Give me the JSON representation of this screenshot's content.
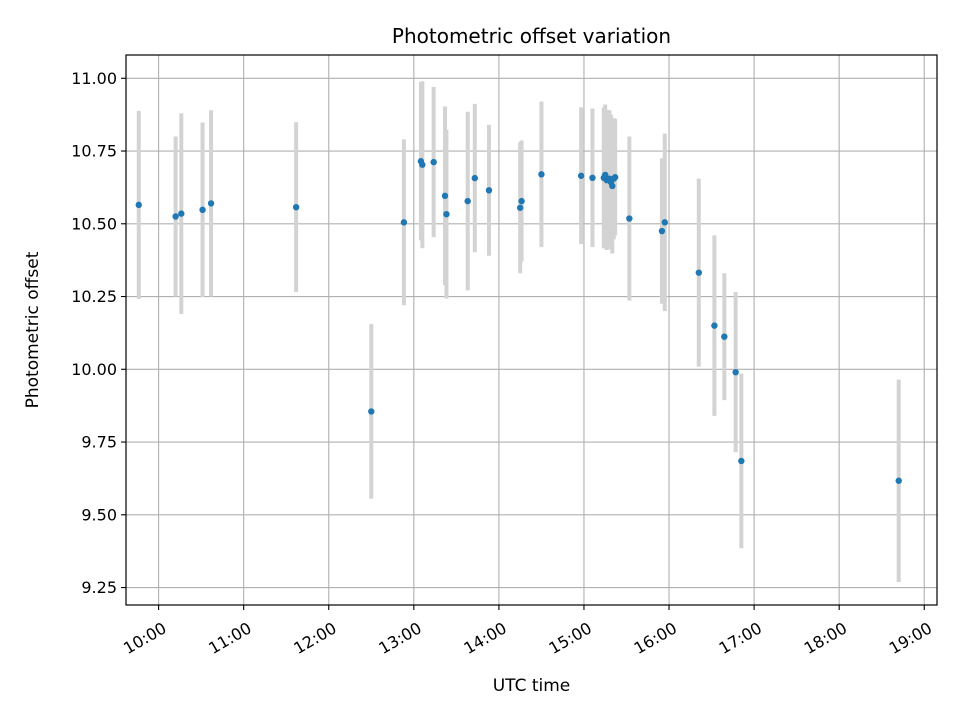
{
  "chart_data": {
    "type": "scatter",
    "title": "Photometric offset variation",
    "xlabel": "UTC time",
    "ylabel": "Photometric offset",
    "x_tick_labels": [
      "10:00",
      "11:00",
      "12:00",
      "13:00",
      "14:00",
      "15:00",
      "16:00",
      "17:00",
      "18:00",
      "19:00"
    ],
    "y_tick_labels": [
      "9.25",
      "9.50",
      "9.75",
      "10.00",
      "10.25",
      "10.50",
      "10.75",
      "11.00"
    ],
    "xlim": [
      "09:37",
      "19:09"
    ],
    "ylim": [
      9.19,
      11.08
    ],
    "grid": true,
    "colors": {
      "point": "#1f77b4",
      "errorbar": "#d3d3d3",
      "grid": "#b0b0b0"
    },
    "points": [
      {
        "x": "09:46",
        "y": 10.565,
        "err": 0.323
      },
      {
        "x": "10:12",
        "y": 10.525,
        "err": 0.275
      },
      {
        "x": "10:16",
        "y": 10.535,
        "err": 0.345
      },
      {
        "x": "10:31",
        "y": 10.548,
        "err": 0.3
      },
      {
        "x": "10:37",
        "y": 10.57,
        "err": 0.32
      },
      {
        "x": "11:37",
        "y": 10.557,
        "err": 0.292
      },
      {
        "x": "12:30",
        "y": 9.855,
        "err": 0.3
      },
      {
        "x": "12:53",
        "y": 10.505,
        "err": 0.285
      },
      {
        "x": "13:05",
        "y": 10.715,
        "err": 0.272
      },
      {
        "x": "13:06",
        "y": 10.703,
        "err": 0.287
      },
      {
        "x": "13:14",
        "y": 10.712,
        "err": 0.258
      },
      {
        "x": "13:22",
        "y": 10.596,
        "err": 0.307
      },
      {
        "x": "13:23",
        "y": 10.533,
        "err": 0.29
      },
      {
        "x": "13:38",
        "y": 10.578,
        "err": 0.307
      },
      {
        "x": "13:43",
        "y": 10.657,
        "err": 0.255
      },
      {
        "x": "13:53",
        "y": 10.615,
        "err": 0.225
      },
      {
        "x": "14:15",
        "y": 10.555,
        "err": 0.225
      },
      {
        "x": "14:16",
        "y": 10.578,
        "err": 0.208
      },
      {
        "x": "14:30",
        "y": 10.67,
        "err": 0.25
      },
      {
        "x": "14:58",
        "y": 10.665,
        "err": 0.235
      },
      {
        "x": "15:06",
        "y": 10.658,
        "err": 0.238
      },
      {
        "x": "15:14",
        "y": 10.658,
        "err": 0.242
      },
      {
        "x": "15:15",
        "y": 10.668,
        "err": 0.242
      },
      {
        "x": "15:16",
        "y": 10.65,
        "err": 0.24
      },
      {
        "x": "15:18",
        "y": 10.655,
        "err": 0.235
      },
      {
        "x": "15:19",
        "y": 10.643,
        "err": 0.232
      },
      {
        "x": "15:20",
        "y": 10.63,
        "err": 0.232
      },
      {
        "x": "15:21",
        "y": 10.655,
        "err": 0.208
      },
      {
        "x": "15:22",
        "y": 10.66,
        "err": 0.2
      },
      {
        "x": "15:32",
        "y": 10.518,
        "err": 0.282
      },
      {
        "x": "15:55",
        "y": 10.475,
        "err": 0.25
      },
      {
        "x": "15:57",
        "y": 10.505,
        "err": 0.305
      },
      {
        "x": "16:21",
        "y": 10.332,
        "err": 0.323
      },
      {
        "x": "16:32",
        "y": 10.15,
        "err": 0.31
      },
      {
        "x": "16:39",
        "y": 10.112,
        "err": 0.218
      },
      {
        "x": "16:47",
        "y": 9.99,
        "err": 0.275
      },
      {
        "x": "16:51",
        "y": 9.685,
        "err": 0.3
      },
      {
        "x": "18:42",
        "y": 9.617,
        "err": 0.348
      }
    ]
  }
}
